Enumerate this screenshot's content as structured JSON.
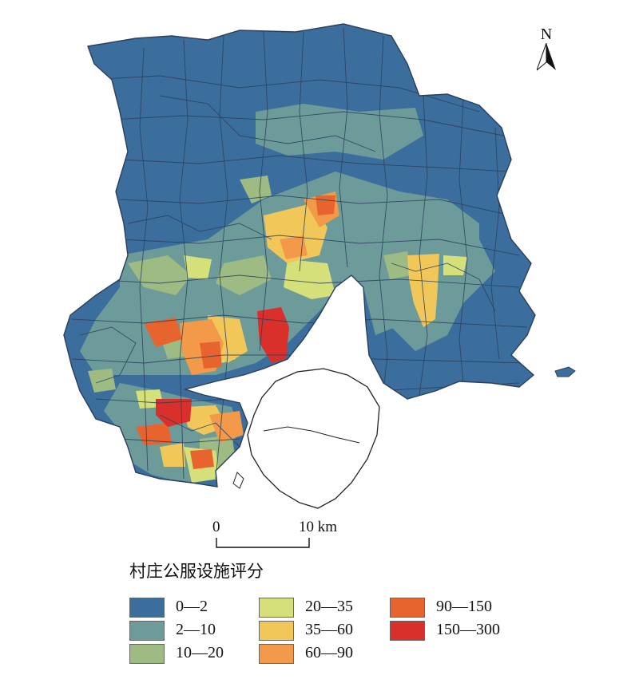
{
  "map": {
    "north_label": "N",
    "scale": {
      "zero": "0",
      "ten": "10 km"
    },
    "colors": {
      "c0": "#3b6e9c",
      "c1": "#6c9b9a",
      "c2": "#9dbb82",
      "c3": "#d5e07a",
      "c4": "#f1c75a",
      "c5": "#f2994a",
      "c6": "#e8642e",
      "c7": "#d9302b"
    },
    "legend": {
      "title": "村庄公服设施评分",
      "items": [
        {
          "label": "0—2",
          "color": "#3b6e9c"
        },
        {
          "label": "2—10",
          "color": "#6c9b9a"
        },
        {
          "label": "10—20",
          "color": "#9dbb82"
        },
        {
          "label": "20—35",
          "color": "#d5e07a"
        },
        {
          "label": "35—60",
          "color": "#f1c75a"
        },
        {
          "label": "60—90",
          "color": "#f2994a"
        },
        {
          "label": "90—150",
          "color": "#e8642e"
        },
        {
          "label": "150—300",
          "color": "#d9302b"
        }
      ]
    }
  }
}
